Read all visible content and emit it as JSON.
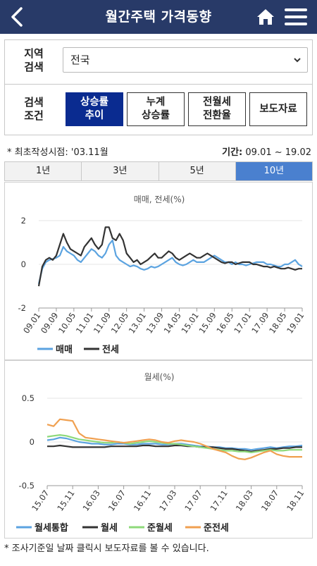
{
  "header": {
    "title": "월간주택 가격동향",
    "back_icon": "chevron-left-icon",
    "home_icon": "home-icon",
    "menu_icon": "hamburger-menu-icon"
  },
  "filter": {
    "region_label_1": "지역",
    "region_label_2": "검색",
    "region_value": "전국",
    "condition_label_1": "검색",
    "condition_label_2": "조건",
    "buttons": [
      {
        "line1": "상승률",
        "line2": "추이",
        "active": true
      },
      {
        "line1": "누계",
        "line2": "상승률",
        "active": false
      },
      {
        "line1": "전월세",
        "line2": "전환율",
        "active": false
      },
      {
        "line1": "보도자료",
        "line2": "",
        "active": false
      }
    ]
  },
  "meta": {
    "first_created": "* 최초작성시점: '03.11월",
    "period_label": "기간:",
    "period_value": "09.01 ~ 19.02"
  },
  "tabs": [
    "1년",
    "3년",
    "5년",
    "10년"
  ],
  "active_tab": 3,
  "colors": {
    "header_bg": "#283a68",
    "active_button": "#0a2b90",
    "active_tab": "#4a80cf",
    "sale": "#5ba3e0",
    "jeonse": "#333333",
    "rent_total": "#5ba3e0",
    "rent": "#333333",
    "semi_rent": "#8ed97a",
    "semi_jeonse": "#f0a050"
  },
  "chart_data": [
    {
      "type": "line",
      "title": "매매, 전세(%)",
      "ylim": [
        -2,
        2
      ],
      "yticks": [
        "2",
        "0",
        "-2"
      ],
      "xticks": [
        "09.01",
        "09.09",
        "10.05",
        "11.01",
        "11.09",
        "12.05",
        "13.01",
        "13.09",
        "14.05",
        "15.01",
        "15.09",
        "16.05",
        "17.01",
        "17.09",
        "18.05",
        "19.01"
      ],
      "series": [
        {
          "name": "매매",
          "color": "#5ba3e0",
          "values": [
            -0.9,
            -0.2,
            0.1,
            0.2,
            0.25,
            0.3,
            0.4,
            0.8,
            0.6,
            0.5,
            0.4,
            0.2,
            0.1,
            0.3,
            0.5,
            0.7,
            0.6,
            0.4,
            0.3,
            0.5,
            0.9,
            1.1,
            0.4,
            0.2,
            0.1,
            0.0,
            -0.1,
            -0.05,
            -0.1,
            -0.2,
            -0.25,
            -0.2,
            -0.1,
            -0.15,
            -0.1,
            0.0,
            0.1,
            0.2,
            0.3,
            0.1,
            0.0,
            -0.05,
            0.0,
            0.1,
            0.2,
            0.1,
            0.1,
            0.1,
            0.2,
            0.3,
            0.4,
            0.3,
            0.2,
            0.1,
            0.1,
            0.0,
            0.1,
            0.0,
            0.0,
            -0.05,
            0.0,
            0.05,
            0.1,
            0.1,
            0.1,
            0.0,
            0.0,
            -0.05,
            -0.1,
            -0.1,
            0.0,
            0.0,
            0.1,
            0.2,
            0.0,
            -0.1
          ]
        },
        {
          "name": "전세",
          "color": "#333333",
          "values": [
            -1.0,
            -0.1,
            0.2,
            0.3,
            0.2,
            0.4,
            0.9,
            1.4,
            1.0,
            0.7,
            0.6,
            0.5,
            0.4,
            0.8,
            1.0,
            1.2,
            0.9,
            0.7,
            0.9,
            1.7,
            1.7,
            1.2,
            1.1,
            1.4,
            1.1,
            0.5,
            0.3,
            0.1,
            0.2,
            0.0,
            0.1,
            0.2,
            0.35,
            0.5,
            0.3,
            0.3,
            0.45,
            0.6,
            0.5,
            0.3,
            0.2,
            0.3,
            0.4,
            0.5,
            0.4,
            0.3,
            0.3,
            0.4,
            0.5,
            0.4,
            0.3,
            0.2,
            0.1,
            0.05,
            0.1,
            0.1,
            0.0,
            0.05,
            0.1,
            0.1,
            0.1,
            0.0,
            0.0,
            -0.05,
            -0.1,
            -0.1,
            -0.15,
            -0.1,
            -0.15,
            -0.2,
            -0.2,
            -0.15,
            -0.2,
            -0.25,
            -0.2,
            -0.2
          ]
        }
      ]
    },
    {
      "type": "line",
      "title": "월세(%)",
      "ylim": [
        -0.5,
        0.5
      ],
      "yticks": [
        "0.5",
        "0",
        "-0.5"
      ],
      "xticks": [
        "15.07",
        "15.11",
        "16.03",
        "16.07",
        "16.11",
        "17.03",
        "17.07",
        "17.11",
        "18.03",
        "18.07",
        "18.11"
      ],
      "series": [
        {
          "name": "월세통합",
          "color": "#5ba3e0",
          "values": [
            0.02,
            0.03,
            0.05,
            0.04,
            0.02,
            0.0,
            -0.01,
            -0.02,
            -0.02,
            -0.03,
            -0.03,
            -0.02,
            -0.02,
            -0.03,
            -0.03,
            -0.02,
            -0.02,
            -0.02,
            -0.03,
            -0.03,
            -0.02,
            -0.02,
            -0.03,
            -0.04,
            -0.05,
            -0.05,
            -0.06,
            -0.06,
            -0.07,
            -0.07,
            -0.08,
            -0.08,
            -0.09,
            -0.08,
            -0.07,
            -0.06,
            -0.07,
            -0.06,
            -0.05,
            -0.05,
            -0.04
          ]
        },
        {
          "name": "월세",
          "color": "#333333",
          "values": [
            -0.05,
            -0.05,
            -0.04,
            -0.05,
            -0.06,
            -0.06,
            -0.06,
            -0.06,
            -0.06,
            -0.06,
            -0.05,
            -0.05,
            -0.05,
            -0.05,
            -0.05,
            -0.04,
            -0.04,
            -0.05,
            -0.05,
            -0.05,
            -0.04,
            -0.04,
            -0.05,
            -0.05,
            -0.06,
            -0.06,
            -0.06,
            -0.07,
            -0.08,
            -0.08,
            -0.09,
            -0.1,
            -0.11,
            -0.1,
            -0.09,
            -0.08,
            -0.08,
            -0.07,
            -0.07,
            -0.06,
            -0.06
          ]
        },
        {
          "name": "준월세",
          "color": "#8ed97a",
          "values": [
            0.06,
            0.07,
            0.08,
            0.07,
            0.05,
            0.03,
            0.02,
            0.01,
            0.0,
            -0.01,
            -0.01,
            0.0,
            -0.01,
            -0.02,
            -0.01,
            0.0,
            0.01,
            0.0,
            -0.01,
            -0.02,
            -0.02,
            -0.03,
            -0.04,
            -0.05,
            -0.06,
            -0.07,
            -0.08,
            -0.09,
            -0.1,
            -0.1,
            -0.11,
            -0.11,
            -0.12,
            -0.11,
            -0.1,
            -0.09,
            -0.1,
            -0.1,
            -0.09,
            -0.09,
            -0.09
          ]
        },
        {
          "name": "준전세",
          "color": "#f0a050",
          "values": [
            0.2,
            0.18,
            0.26,
            0.25,
            0.24,
            0.1,
            0.05,
            0.04,
            0.03,
            0.02,
            0.01,
            0.0,
            -0.01,
            0.0,
            0.01,
            0.02,
            0.03,
            0.02,
            0.0,
            -0.01,
            0.01,
            0.02,
            0.01,
            0.0,
            -0.02,
            -0.05,
            -0.08,
            -0.1,
            -0.12,
            -0.16,
            -0.19,
            -0.2,
            -0.18,
            -0.15,
            -0.12,
            -0.1,
            -0.14,
            -0.16,
            -0.17,
            -0.17,
            -0.17
          ]
        }
      ]
    }
  ],
  "footnote": "* 조사기준일 날짜 클릭시 보도자료를 볼 수 있습니다."
}
